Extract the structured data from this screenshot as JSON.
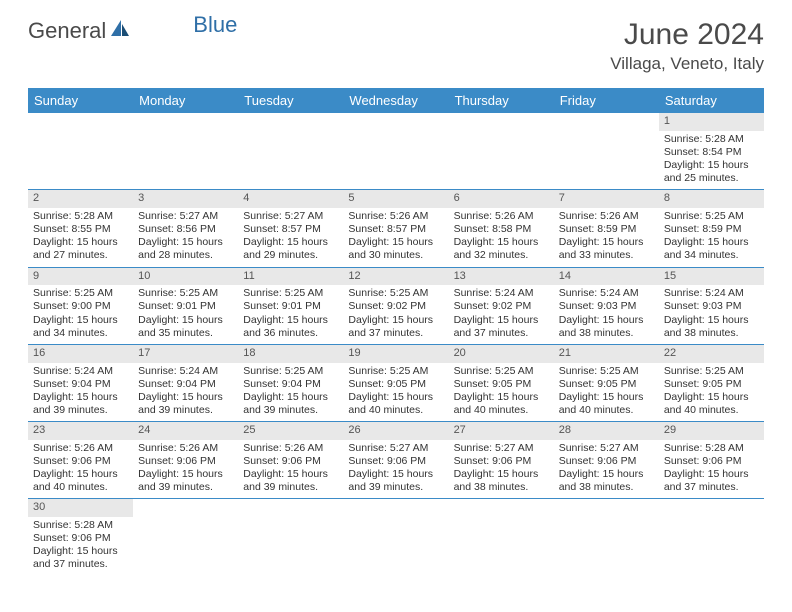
{
  "logo": {
    "text1": "General",
    "text2": "Blue"
  },
  "title": "June 2024",
  "location": "Villaga, Veneto, Italy",
  "colors": {
    "header_bg": "#3b8bc7",
    "header_fg": "#ffffff",
    "daynum_bg": "#e8e8e8",
    "row_border": "#3b8bc7",
    "text": "#333333",
    "title_color": "#4a4a4a"
  },
  "day_headers": [
    "Sunday",
    "Monday",
    "Tuesday",
    "Wednesday",
    "Thursday",
    "Friday",
    "Saturday"
  ],
  "weeks": [
    [
      null,
      null,
      null,
      null,
      null,
      null,
      {
        "n": "1",
        "sr": "5:28 AM",
        "ss": "8:54 PM",
        "dl": "15 hours and 25 minutes."
      }
    ],
    [
      {
        "n": "2",
        "sr": "5:28 AM",
        "ss": "8:55 PM",
        "dl": "15 hours and 27 minutes."
      },
      {
        "n": "3",
        "sr": "5:27 AM",
        "ss": "8:56 PM",
        "dl": "15 hours and 28 minutes."
      },
      {
        "n": "4",
        "sr": "5:27 AM",
        "ss": "8:57 PM",
        "dl": "15 hours and 29 minutes."
      },
      {
        "n": "5",
        "sr": "5:26 AM",
        "ss": "8:57 PM",
        "dl": "15 hours and 30 minutes."
      },
      {
        "n": "6",
        "sr": "5:26 AM",
        "ss": "8:58 PM",
        "dl": "15 hours and 32 minutes."
      },
      {
        "n": "7",
        "sr": "5:26 AM",
        "ss": "8:59 PM",
        "dl": "15 hours and 33 minutes."
      },
      {
        "n": "8",
        "sr": "5:25 AM",
        "ss": "8:59 PM",
        "dl": "15 hours and 34 minutes."
      }
    ],
    [
      {
        "n": "9",
        "sr": "5:25 AM",
        "ss": "9:00 PM",
        "dl": "15 hours and 34 minutes."
      },
      {
        "n": "10",
        "sr": "5:25 AM",
        "ss": "9:01 PM",
        "dl": "15 hours and 35 minutes."
      },
      {
        "n": "11",
        "sr": "5:25 AM",
        "ss": "9:01 PM",
        "dl": "15 hours and 36 minutes."
      },
      {
        "n": "12",
        "sr": "5:25 AM",
        "ss": "9:02 PM",
        "dl": "15 hours and 37 minutes."
      },
      {
        "n": "13",
        "sr": "5:24 AM",
        "ss": "9:02 PM",
        "dl": "15 hours and 37 minutes."
      },
      {
        "n": "14",
        "sr": "5:24 AM",
        "ss": "9:03 PM",
        "dl": "15 hours and 38 minutes."
      },
      {
        "n": "15",
        "sr": "5:24 AM",
        "ss": "9:03 PM",
        "dl": "15 hours and 38 minutes."
      }
    ],
    [
      {
        "n": "16",
        "sr": "5:24 AM",
        "ss": "9:04 PM",
        "dl": "15 hours and 39 minutes."
      },
      {
        "n": "17",
        "sr": "5:24 AM",
        "ss": "9:04 PM",
        "dl": "15 hours and 39 minutes."
      },
      {
        "n": "18",
        "sr": "5:25 AM",
        "ss": "9:04 PM",
        "dl": "15 hours and 39 minutes."
      },
      {
        "n": "19",
        "sr": "5:25 AM",
        "ss": "9:05 PM",
        "dl": "15 hours and 40 minutes."
      },
      {
        "n": "20",
        "sr": "5:25 AM",
        "ss": "9:05 PM",
        "dl": "15 hours and 40 minutes."
      },
      {
        "n": "21",
        "sr": "5:25 AM",
        "ss": "9:05 PM",
        "dl": "15 hours and 40 minutes."
      },
      {
        "n": "22",
        "sr": "5:25 AM",
        "ss": "9:05 PM",
        "dl": "15 hours and 40 minutes."
      }
    ],
    [
      {
        "n": "23",
        "sr": "5:26 AM",
        "ss": "9:06 PM",
        "dl": "15 hours and 40 minutes."
      },
      {
        "n": "24",
        "sr": "5:26 AM",
        "ss": "9:06 PM",
        "dl": "15 hours and 39 minutes."
      },
      {
        "n": "25",
        "sr": "5:26 AM",
        "ss": "9:06 PM",
        "dl": "15 hours and 39 minutes."
      },
      {
        "n": "26",
        "sr": "5:27 AM",
        "ss": "9:06 PM",
        "dl": "15 hours and 39 minutes."
      },
      {
        "n": "27",
        "sr": "5:27 AM",
        "ss": "9:06 PM",
        "dl": "15 hours and 38 minutes."
      },
      {
        "n": "28",
        "sr": "5:27 AM",
        "ss": "9:06 PM",
        "dl": "15 hours and 38 minutes."
      },
      {
        "n": "29",
        "sr": "5:28 AM",
        "ss": "9:06 PM",
        "dl": "15 hours and 37 minutes."
      }
    ],
    [
      {
        "n": "30",
        "sr": "5:28 AM",
        "ss": "9:06 PM",
        "dl": "15 hours and 37 minutes."
      },
      null,
      null,
      null,
      null,
      null,
      null
    ]
  ],
  "labels": {
    "sunrise": "Sunrise:",
    "sunset": "Sunset:",
    "daylight": "Daylight:"
  }
}
